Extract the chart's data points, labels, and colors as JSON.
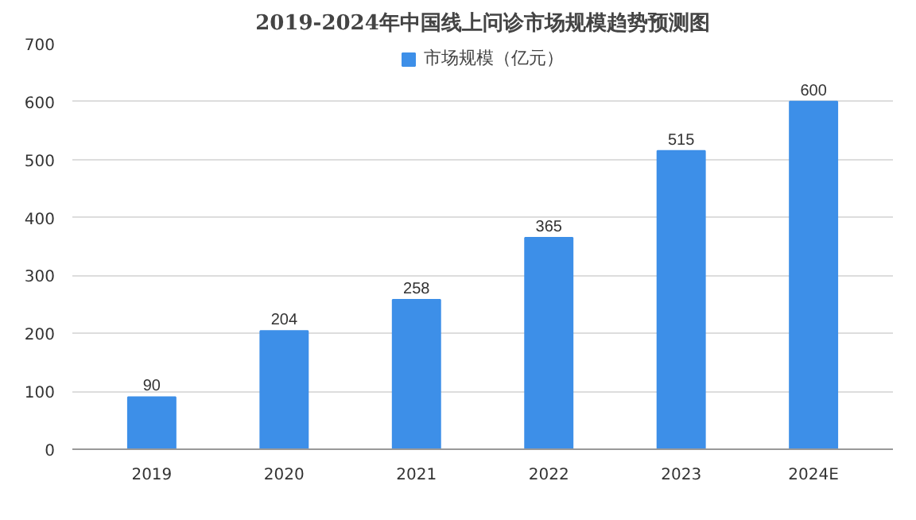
{
  "chart_data": {
    "type": "bar",
    "title": "2019-2024年中国线上问诊市场规模趋势预测图",
    "categories": [
      "2019",
      "2020",
      "2021",
      "2022",
      "2023",
      "2024E"
    ],
    "series": [
      {
        "name": "市场规模（亿元）",
        "color": "#3d8fe8",
        "values": [
          90,
          204,
          258,
          365,
          515,
          600
        ]
      }
    ],
    "ylim": [
      0,
      700
    ],
    "yticks": [
      0,
      100,
      200,
      300,
      400,
      500,
      600,
      700
    ],
    "grid": "y",
    "legend": "top",
    "data_labels": true
  }
}
